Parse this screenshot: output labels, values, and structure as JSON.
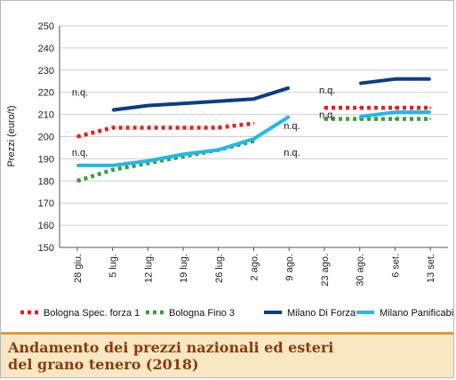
{
  "caption": {
    "title": "Andamento dei prezzi nazionali ed esteri\ndel grano tenero (2018)"
  },
  "chart_data": {
    "type": "line",
    "ylabel": "Prezzi (euro/t)",
    "xlabel": "",
    "ylim": [
      150,
      250
    ],
    "yticks": [
      150,
      160,
      170,
      180,
      190,
      200,
      210,
      220,
      230,
      240,
      250
    ],
    "grid": "horizontal",
    "legend_position": "bottom",
    "categories": [
      "28 giu.",
      "5 lug.",
      "12 lug.",
      "19 lug.",
      "26 lug.",
      "2 ago.",
      "9 ago.",
      "23 ago.",
      "30 ago.",
      "6 set.",
      "13 set."
    ],
    "series": [
      {
        "name": "Bologna Spec. forza 1",
        "color": "#e8201c",
        "style": "dotted",
        "values": [
          200,
          204,
          204,
          204,
          204,
          206,
          null,
          213,
          213,
          213,
          213
        ]
      },
      {
        "name": "Bologna Fino 3",
        "color": "#3a9e3a",
        "style": "dotted",
        "values": [
          180,
          185,
          188,
          191,
          194,
          198,
          null,
          208,
          208,
          208,
          208
        ]
      },
      {
        "name": "Milano Di Forza",
        "color": "#0b3d86",
        "style": "solid",
        "values": [
          null,
          212,
          214,
          215,
          216,
          217,
          222,
          null,
          224,
          226,
          226
        ]
      },
      {
        "name": "Milano Panificabile",
        "color": "#23b8e8",
        "style": "solid",
        "values": [
          187,
          187,
          189,
          192,
          194,
          199,
          209,
          null,
          209,
          211,
          211
        ]
      }
    ],
    "annotations": [
      {
        "text": "n.q.",
        "x": "28 giu.",
        "y": 220
      },
      {
        "text": "n.q.",
        "x": "28 giu.",
        "y": 193
      },
      {
        "text": "n.q.",
        "x": "9 ago.",
        "y": 205
      },
      {
        "text": "n.q.",
        "x": "9 ago.",
        "y": 193
      },
      {
        "text": "n.q.",
        "x": "23 ago.",
        "y": 221
      },
      {
        "text": "n.q.",
        "x": "23 ago.",
        "y": 210
      }
    ]
  }
}
